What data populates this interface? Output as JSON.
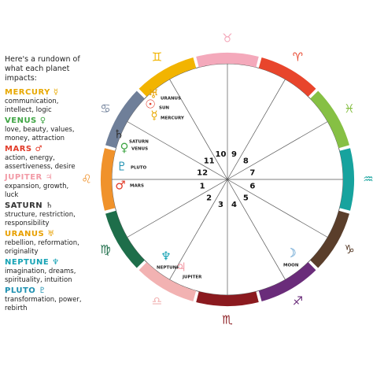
{
  "intro": "Here's a rundown of what each planet impacts:",
  "planets": [
    {
      "name": "MERCURY",
      "symbol": "☿",
      "color": "#e8a800",
      "description": "communication, intellect, logic"
    },
    {
      "name": "VENUS",
      "symbol": "♀",
      "color": "#3fa544",
      "description": "love, beauty, values, money, attraction"
    },
    {
      "name": "MARS",
      "symbol": "♂",
      "color": "#e23c2a",
      "description": "action, energy, assertiveness, desire"
    },
    {
      "name": "JUPITER",
      "symbol": "♃",
      "color": "#f29aa6",
      "description": "expansion, growth, luck"
    },
    {
      "name": "SATURN",
      "symbol": "♄",
      "color": "#333333",
      "description": "structure, restriction, responsibility"
    },
    {
      "name": "URANUS",
      "symbol": "♅",
      "color": "#e8a000",
      "description": "rebellion, reformation, originality"
    },
    {
      "name": "NEPTUNE",
      "symbol": "♆",
      "color": "#17a3b5",
      "description": "imagination, dreams, spirituality, intuition"
    },
    {
      "name": "PLUTO",
      "symbol": "♇",
      "color": "#1c8fb0",
      "description": "transformation, power, rebirth"
    }
  ],
  "zodiac": [
    {
      "symbol": "♉",
      "color": "#f4a9bb"
    },
    {
      "symbol": "♈",
      "color": "#e8452c"
    },
    {
      "symbol": "♓",
      "color": "#86c044"
    },
    {
      "symbol": "♒",
      "color": "#17a39e"
    },
    {
      "symbol": "♑",
      "color": "#5a3e2b"
    },
    {
      "symbol": "♐",
      "color": "#6a2c7a"
    },
    {
      "symbol": "♏",
      "color": "#8b1a1f"
    },
    {
      "symbol": "♎",
      "color": "#f2b2b2"
    },
    {
      "symbol": "♍",
      "color": "#1e6e4a"
    },
    {
      "symbol": "♌",
      "color": "#f0922b"
    },
    {
      "symbol": "♋",
      "color": "#6f7f99"
    },
    {
      "symbol": "♊",
      "color": "#f2b400"
    }
  ],
  "houses": [
    "1",
    "2",
    "3",
    "4",
    "5",
    "6",
    "7",
    "8",
    "9",
    "10",
    "11",
    "12"
  ],
  "placements": [
    {
      "label": "URANUS",
      "symbol": "♅",
      "color": "#e8a000"
    },
    {
      "label": "SUN",
      "symbol": "☉",
      "color": "#e23c2a"
    },
    {
      "label": "MERCURY",
      "symbol": "☿",
      "color": "#e8a800"
    },
    {
      "label": "SATURN",
      "symbol": "♄",
      "color": "#333333"
    },
    {
      "label": "VENUS",
      "symbol": "♀",
      "color": "#3fa544"
    },
    {
      "label": "PLUTO",
      "symbol": "♇",
      "color": "#1c8fb0"
    },
    {
      "label": "MARS",
      "symbol": "♂",
      "color": "#e23c2a"
    },
    {
      "label": "NEPTUNE",
      "symbol": "♆",
      "color": "#17a3b5"
    },
    {
      "label": "JUPITER",
      "symbol": "♃",
      "color": "#f29aa6"
    },
    {
      "label": "MOON",
      "symbol": "☽",
      "color": "#2a7fc0"
    }
  ]
}
